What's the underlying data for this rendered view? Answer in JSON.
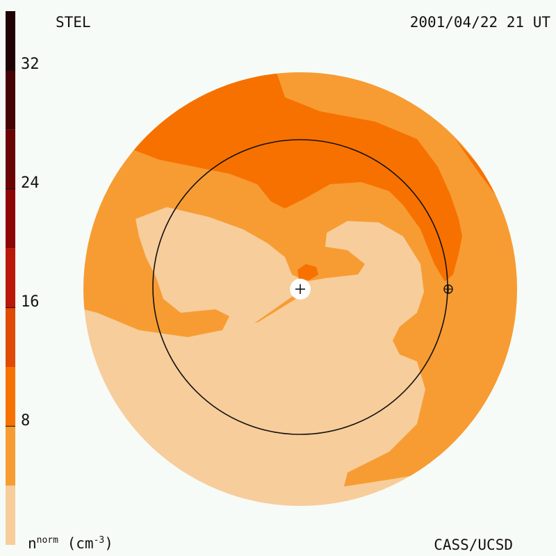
{
  "header": {
    "source": "STEL",
    "timestamp": "2001/04/22 21 UT"
  },
  "footer": {
    "credit": "CASS/UCSD",
    "unit_label": {
      "base": "n",
      "sup": "norm",
      "unit": "(cm",
      "unit_sup": "-3",
      "close": ")"
    }
  },
  "colorbar": {
    "ticks": [
      "32",
      "24",
      "16",
      "8"
    ],
    "tick_values": [
      32,
      24,
      16,
      8
    ],
    "range": [
      0,
      36
    ],
    "bands": [
      {
        "from": 0,
        "to": 4,
        "color": "#f7cd9b"
      },
      {
        "from": 4,
        "to": 8,
        "color": "#f79c33"
      },
      {
        "from": 8,
        "to": 12,
        "color": "#f77100"
      },
      {
        "from": 12,
        "to": 16,
        "color": "#df4a04"
      },
      {
        "from": 16,
        "to": 20,
        "color": "#b91708"
      },
      {
        "from": 20,
        "to": 24,
        "color": "#8e0505"
      },
      {
        "from": 24,
        "to": 28,
        "color": "#6a0404"
      },
      {
        "from": 28,
        "to": 32,
        "color": "#440404"
      },
      {
        "from": 32,
        "to": 36,
        "color": "#1f0202"
      }
    ]
  },
  "colors": {
    "low": "#f7cd9b",
    "mid": "#f79c33",
    "high": "#f77100",
    "background": "#f7fbf7"
  },
  "markers": {
    "sun_icon": "plus-in-circle",
    "earth_icon": "circle-plus"
  }
}
